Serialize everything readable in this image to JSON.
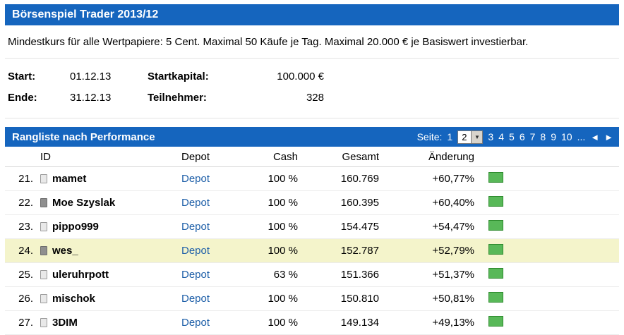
{
  "header": {
    "title": "Börsenspiel Trader 2013/12"
  },
  "description": "Mindestkurs für alle Wertpapiere: 5 Cent. Maximal 50 Käufe je Tag. Maximal 20.000 € je Basiswert investierbar.",
  "info": {
    "rows": [
      {
        "label1": "Start:",
        "value1": "01.12.13",
        "label2": "Startkapital:",
        "value2": "100.000 €"
      },
      {
        "label1": "Ende:",
        "value1": "31.12.13",
        "label2": "Teilnehmer:",
        "value2": "328"
      }
    ]
  },
  "ranking": {
    "title": "Rangliste nach Performance",
    "pagination": {
      "label": "Seite:",
      "page1": "1",
      "current_page": "2",
      "pages": [
        "3",
        "4",
        "5",
        "6",
        "7",
        "8",
        "9",
        "10",
        "..."
      ],
      "dropdown_glyph": "▼",
      "prev": "◄",
      "next": "►"
    },
    "columns": {
      "id": "ID",
      "depot": "Depot",
      "cash": "Cash",
      "gesamt": "Gesamt",
      "aenderung": "Änderung"
    },
    "rows": [
      {
        "rank": "21.",
        "icon": "user-icon",
        "icon_variant": "light",
        "id": "mamet",
        "depot": "Depot",
        "cash": "100 %",
        "gesamt": "160.769",
        "aenderung": "+60,77%"
      },
      {
        "rank": "22.",
        "icon": "user-icon",
        "icon_variant": "dark",
        "id": "Moe Szyslak",
        "depot": "Depot",
        "cash": "100 %",
        "gesamt": "160.395",
        "aenderung": "+60,40%"
      },
      {
        "rank": "23.",
        "icon": "user-icon",
        "icon_variant": "light",
        "id": "pippo999",
        "depot": "Depot",
        "cash": "100 %",
        "gesamt": "154.475",
        "aenderung": "+54,47%"
      },
      {
        "rank": "24.",
        "icon": "user-icon",
        "icon_variant": "dark",
        "id": "wes_",
        "depot": "Depot",
        "cash": "100 %",
        "gesamt": "152.787",
        "aenderung": "+52,79%",
        "highlighted": true
      },
      {
        "rank": "25.",
        "icon": "user-icon",
        "icon_variant": "light",
        "id": "uleruhrpott",
        "depot": "Depot",
        "cash": "63 %",
        "gesamt": "151.366",
        "aenderung": "+51,37%"
      },
      {
        "rank": "26.",
        "icon": "user-icon",
        "icon_variant": "light",
        "id": "mischok",
        "depot": "Depot",
        "cash": "100 %",
        "gesamt": "150.810",
        "aenderung": "+50,81%"
      },
      {
        "rank": "27.",
        "icon": "user-icon",
        "icon_variant": "light",
        "id": "3DIM",
        "depot": "Depot",
        "cash": "100 %",
        "gesamt": "149.134",
        "aenderung": "+49,13%"
      }
    ]
  },
  "colors": {
    "header_blue": "#1565BE",
    "link_blue": "#1E5FA8",
    "highlight_row": "#F4F4CB",
    "positive_green": "#58B858"
  }
}
